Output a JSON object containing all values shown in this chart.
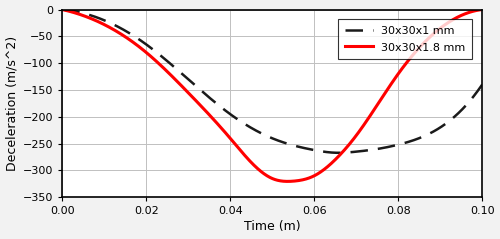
{
  "xlabel": "Time (m)",
  "ylabel": "Deceleration (m/s^2)",
  "xlim": [
    0,
    0.1
  ],
  "ylim": [
    -350,
    0
  ],
  "xticks": [
    0,
    0.02,
    0.04,
    0.06,
    0.08,
    0.1
  ],
  "yticks": [
    0,
    -50,
    -100,
    -150,
    -200,
    -250,
    -300,
    -350
  ],
  "legend_labels": [
    "30x30x1 mm",
    "30x30x1.8 mm"
  ],
  "line1_color": "#1a1a1a",
  "line2_color": "red",
  "line1_linewidth": 1.8,
  "line2_linewidth": 2.2,
  "grid_color": "#c0c0c0",
  "ax_facecolor": "#ffffff",
  "fig_facecolor": "#f2f2f2",
  "red_t_pts": [
    0,
    0.01,
    0.02,
    0.03,
    0.04,
    0.045,
    0.05,
    0.055,
    0.06,
    0.065,
    0.07,
    0.08,
    0.09,
    0.1
  ],
  "red_y_pts": [
    0,
    -28,
    -80,
    -155,
    -240,
    -285,
    -315,
    -320,
    -310,
    -280,
    -235,
    -120,
    -35,
    0
  ],
  "black_t_pts": [
    0,
    0.01,
    0.02,
    0.03,
    0.04,
    0.05,
    0.06,
    0.065,
    0.07,
    0.075,
    0.08,
    0.09,
    0.1
  ],
  "black_y_pts": [
    0,
    -20,
    -65,
    -130,
    -195,
    -240,
    -262,
    -267,
    -265,
    -260,
    -252,
    -220,
    -140
  ]
}
